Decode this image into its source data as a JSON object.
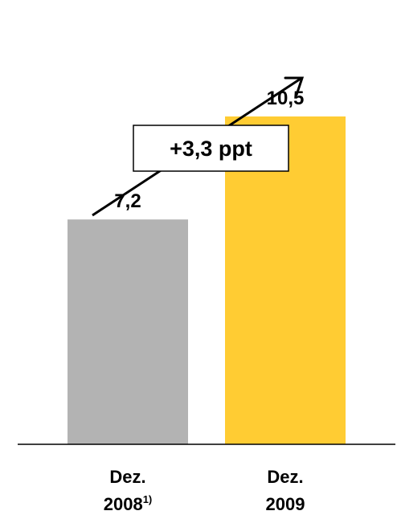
{
  "chart_data": {
    "type": "bar",
    "categories": [
      {
        "line1": "Dez.",
        "line2": "2008",
        "footnote": "1)"
      },
      {
        "line1": "Dez.",
        "line2": "2009",
        "footnote": ""
      }
    ],
    "values": [
      7.2,
      10.5
    ],
    "value_labels": [
      "7,2",
      "10,5"
    ],
    "colors": [
      "#b3b3b3",
      "#ffcc33"
    ],
    "annotation": {
      "text": "+3,3 ppt",
      "arrow": "up-right"
    },
    "ylim": [
      0,
      13.2
    ],
    "grid": false,
    "title": "",
    "xlabel": "",
    "ylabel": ""
  }
}
